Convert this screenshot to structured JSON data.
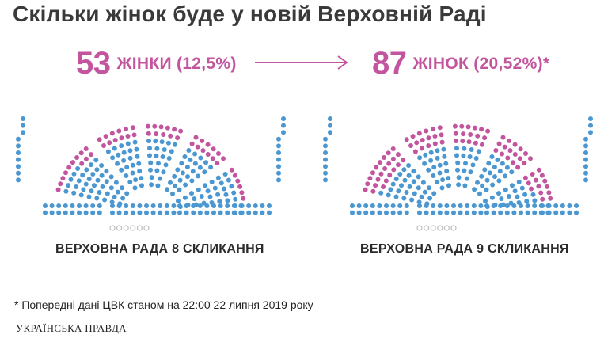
{
  "title": "Скільки жінок буде у новій Верховній Раді",
  "left": {
    "number": "53",
    "label": "ЖІНКИ (12,5%)",
    "caption": "ВЕРХОВНА РАДА 8 СКЛИКАННЯ",
    "women_seats": 53
  },
  "right": {
    "number": "87",
    "label": "ЖІНОК (20,52%)*",
    "caption": "ВЕРХОВНА РАДА 9 СКЛИКАННЯ",
    "women_seats": 87
  },
  "footnote": "* Попередні дані ЦВК станом на 22:00 22 липня 2019 року",
  "logo": "УКРАЇНСЬКА ПРАВДА",
  "colors": {
    "women": "#c2559e",
    "men": "#4a97d1",
    "vacant": "#bdbdbd",
    "title": "#3a3a3a",
    "arrow": "#c2559e"
  }
}
